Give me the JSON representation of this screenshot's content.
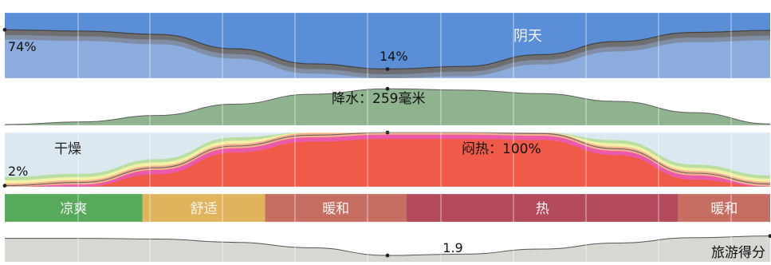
{
  "chart_data": [
    {
      "type": "area",
      "metric": "cloud-cover",
      "x": [
        0,
        1,
        2,
        3,
        4,
        5,
        6,
        7,
        8,
        9,
        10
      ],
      "series": [
        {
          "name": "阴天",
          "values": [
            74,
            72,
            67,
            45,
            22,
            14,
            18,
            36,
            56,
            70,
            73
          ]
        }
      ],
      "title": "",
      "xlabel": "",
      "ylabel": "",
      "ylim": [
        0,
        100
      ],
      "labels": [
        {
          "text": "阴天"
        },
        {
          "text": "74%",
          "value": 74,
          "point_index": 0
        },
        {
          "text": "14%",
          "value": 14,
          "point_index": 5
        }
      ],
      "colors": {
        "overcast": "#6f6f71",
        "mostly_cloudy": "#7f8fa8",
        "partly_cloudy": "#8eaee0",
        "clear": "#5a8fd8",
        "line": "#424242"
      }
    },
    {
      "type": "area",
      "metric": "precipitation",
      "x": [
        0,
        1,
        2,
        3,
        4,
        5,
        6,
        7,
        8,
        9,
        10
      ],
      "series": [
        {
          "name": "降水",
          "values": [
            5,
            25,
            70,
            150,
            220,
            259,
            250,
            225,
            170,
            90,
            10
          ]
        }
      ],
      "title": "",
      "xlabel": "",
      "ylabel": "",
      "ylim": [
        0,
        300
      ],
      "labels": [
        {
          "text": "降水：259毫米",
          "value": 259,
          "point_index": 5
        }
      ],
      "colors": {
        "fill": "#8fb38f",
        "line": "#5f5f5f"
      }
    },
    {
      "type": "area",
      "metric": "humidity-comfort",
      "x": [
        0,
        1,
        2,
        3,
        4,
        5,
        6,
        7,
        8,
        9,
        10
      ],
      "series": [
        {
          "name": "闷热",
          "values": [
            2,
            8,
            35,
            75,
            95,
            100,
            100,
            98,
            70,
            25,
            5
          ]
        }
      ],
      "title": "",
      "xlabel": "",
      "ylabel": "",
      "ylim": [
        0,
        100
      ],
      "labels": [
        {
          "text": "干燥"
        },
        {
          "text": "2%",
          "value": 2,
          "point_index": 0
        },
        {
          "text": "闷热：100%",
          "value": 100,
          "point_index": 5
        }
      ],
      "colors": {
        "background": "#dce8ef",
        "green": "#b8dfa1",
        "yellow": "#f1f0a6",
        "orange": "#f4b08e",
        "pink": "#ea5aa8",
        "red": "#ef5a49",
        "line": "#666666"
      }
    },
    {
      "type": "table",
      "metric": "temperature-band",
      "segments": [
        {
          "label": "凉爽",
          "start": 0,
          "end": 1.8,
          "color": "#57a95b"
        },
        {
          "label": "舒适",
          "start": 1.8,
          "end": 3.4,
          "color": "#dfb45c"
        },
        {
          "label": "暖和",
          "start": 3.4,
          "end": 5.25,
          "color": "#c76e63"
        },
        {
          "label": "热",
          "start": 5.25,
          "end": 8.8,
          "color": "#b44b5d"
        },
        {
          "label": "暖和",
          "start": 8.8,
          "end": 10,
          "color": "#c76e63"
        }
      ]
    },
    {
      "type": "line",
      "metric": "tourism-score",
      "x": [
        0,
        1,
        2,
        3,
        4,
        5,
        6,
        7,
        8,
        9,
        10
      ],
      "series": [
        {
          "name": "旅游得分",
          "values": [
            7.0,
            7.0,
            6.8,
            5.8,
            4.2,
            1.9,
            2.3,
            3.8,
            5.6,
            7.2,
            7.7
          ]
        }
      ],
      "title": "",
      "xlabel": "",
      "ylabel": "",
      "ylim": [
        0,
        10
      ],
      "labels": [
        {
          "text": "1.9",
          "value": 1.9,
          "point_index": 5
        },
        {
          "text": "旅游得分"
        }
      ],
      "colors": {
        "fill": "#d6d8d2",
        "line": "#555555"
      }
    }
  ]
}
